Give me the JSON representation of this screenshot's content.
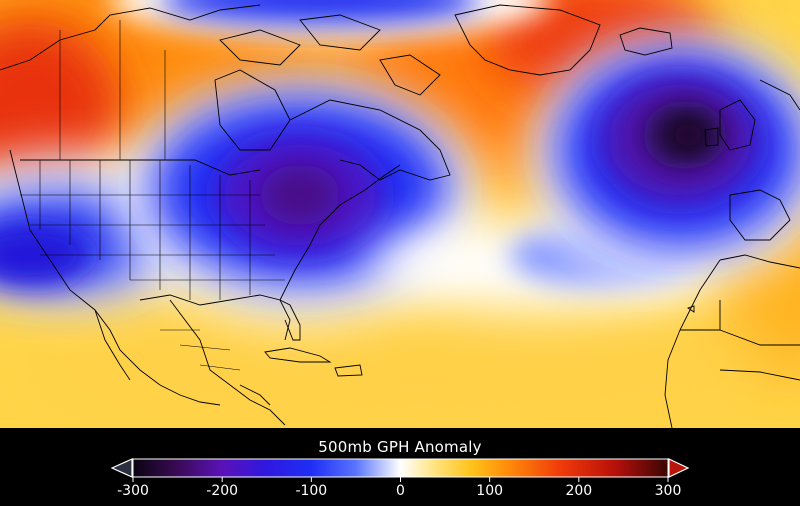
{
  "legend": {
    "title": "500mb GPH Anomaly",
    "ticks": [
      {
        "value": -300,
        "label": "-300"
      },
      {
        "value": -200,
        "label": "-200"
      },
      {
        "value": -100,
        "label": "-100"
      },
      {
        "value": 0,
        "label": "0"
      },
      {
        "value": 100,
        "label": "100"
      },
      {
        "value": 200,
        "label": "200"
      },
      {
        "value": 300,
        "label": "300"
      }
    ],
    "range": [
      -300,
      300
    ],
    "colorstops": [
      {
        "value": -300,
        "color": "#0a0410"
      },
      {
        "value": -250,
        "color": "#3a0a55"
      },
      {
        "value": -200,
        "color": "#5a12b8"
      },
      {
        "value": -150,
        "color": "#2f18e0"
      },
      {
        "value": -100,
        "color": "#1f2ef5"
      },
      {
        "value": -50,
        "color": "#5a74ff"
      },
      {
        "value": 0,
        "color": "#ffffff"
      },
      {
        "value": 40,
        "color": "#ffe27a"
      },
      {
        "value": 80,
        "color": "#ffc21a"
      },
      {
        "value": 120,
        "color": "#ff8c0a"
      },
      {
        "value": 180,
        "color": "#f03a0a"
      },
      {
        "value": 240,
        "color": "#b8100a"
      },
      {
        "value": 300,
        "color": "#3a0505"
      }
    ]
  },
  "map_colors": {
    "background": "#ffd64a",
    "outline": "#000000"
  }
}
